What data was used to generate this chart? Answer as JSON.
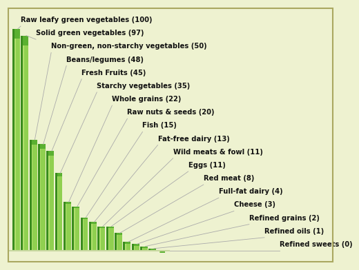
{
  "categories": [
    "Raw leafy green vegetables (100)",
    "Solid green vegetables (97)",
    "Non-green, non-starchy vegetables (50)",
    "Beans/legumes (48)",
    "Fresh Fruits (45)",
    "Starchy vegetables (35)",
    "Whole grains (22)",
    "Raw nuts & seeds (20)",
    "Fish (15)",
    "Fat-free dairy (13)",
    "Wild meats & fowl (11)",
    "Eggs (11)",
    "Red meat (8)",
    "Full-fat dairy (4)",
    "Cheese (3)",
    "Refined grains (2)",
    "Refined oils (1)",
    "Refined sweets (0)"
  ],
  "values": [
    100,
    97,
    50,
    48,
    45,
    35,
    22,
    20,
    15,
    13,
    11,
    11,
    8,
    4,
    3,
    2,
    1,
    0
  ],
  "background_color": "#eef2d0",
  "bar_face_color": "#90d050",
  "bar_left_color": "#3a8c1e",
  "bar_top_color": "#5ab030",
  "bar_highlight_color": "#c8ec80",
  "label_color": "#111111",
  "label_fontsize": 7.2,
  "label_fontweight": "bold",
  "border_color": "#aaa860",
  "line_color": "#aaaaaa"
}
